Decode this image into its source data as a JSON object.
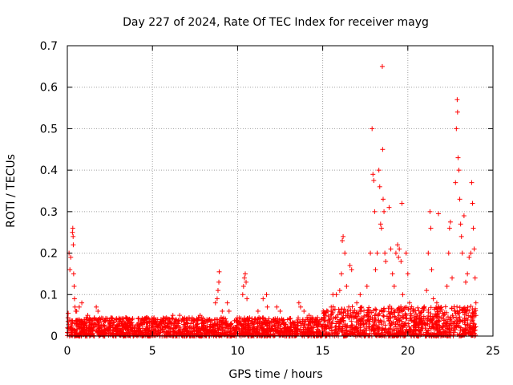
{
  "colors": {
    "series": "#ff0000",
    "grid": "#a0a0a0",
    "axis": "#000000"
  },
  "chart_data": {
    "type": "scatter",
    "title": "Day 227 of 2024, Rate Of TEC Index for receiver mayg",
    "xlabel": "GPS time / hours",
    "ylabel": "ROTI / TECUs",
    "xlim": [
      0,
      25
    ],
    "ylim": [
      0,
      0.7
    ],
    "x_ticks": [
      0,
      5,
      10,
      15,
      20,
      25
    ],
    "x_tick_labels": [
      "0",
      "5",
      "10",
      "15",
      "20",
      "25"
    ],
    "y_ticks": [
      0,
      0.1,
      0.2,
      0.3,
      0.4,
      0.5,
      0.6,
      0.7
    ],
    "y_tick_labels": [
      "0",
      "0.1",
      "0.2",
      "0.3",
      "0.4",
      "0.5",
      "0.6",
      "0.7"
    ],
    "grid": true,
    "marker": "+",
    "series": [
      {
        "name": "ROTI",
        "points": [
          [
            0.05,
            0.055
          ],
          [
            0.1,
            0.2
          ],
          [
            0.15,
            0.16
          ],
          [
            0.2,
            0.19
          ],
          [
            0.3,
            0.25
          ],
          [
            0.32,
            0.26
          ],
          [
            0.34,
            0.24
          ],
          [
            0.35,
            0.22
          ],
          [
            0.37,
            0.15
          ],
          [
            0.4,
            0.12
          ],
          [
            0.42,
            0.09
          ],
          [
            0.45,
            0.07
          ],
          [
            0.5,
            0.06
          ],
          [
            0.55,
            0.06
          ],
          [
            0.7,
            0.07
          ],
          [
            0.85,
            0.08
          ],
          [
            1.2,
            0.05
          ],
          [
            1.7,
            0.07
          ],
          [
            1.8,
            0.06
          ],
          [
            2.5,
            0.03
          ],
          [
            3.5,
            0.03
          ],
          [
            4.3,
            0.035
          ],
          [
            5.0,
            0.04
          ],
          [
            5.5,
            0.04
          ],
          [
            6.2,
            0.05
          ],
          [
            6.6,
            0.05
          ],
          [
            7.4,
            0.04
          ],
          [
            7.8,
            0.05
          ],
          [
            8.2,
            0.04
          ],
          [
            8.7,
            0.08
          ],
          [
            8.8,
            0.09
          ],
          [
            8.85,
            0.11
          ],
          [
            8.9,
            0.13
          ],
          [
            8.92,
            0.155
          ],
          [
            9.1,
            0.06
          ],
          [
            9.4,
            0.08
          ],
          [
            9.5,
            0.06
          ],
          [
            10.3,
            0.1
          ],
          [
            10.35,
            0.12
          ],
          [
            10.4,
            0.14
          ],
          [
            10.45,
            0.15
          ],
          [
            10.5,
            0.13
          ],
          [
            10.55,
            0.09
          ],
          [
            11.2,
            0.06
          ],
          [
            11.5,
            0.09
          ],
          [
            11.7,
            0.1
          ],
          [
            11.75,
            0.07
          ],
          [
            12.3,
            0.07
          ],
          [
            12.5,
            0.06
          ],
          [
            13.6,
            0.08
          ],
          [
            13.7,
            0.07
          ],
          [
            13.9,
            0.06
          ],
          [
            14.2,
            0.05
          ],
          [
            14.6,
            0.04
          ],
          [
            15.3,
            0.06
          ],
          [
            15.5,
            0.07
          ],
          [
            15.6,
            0.1
          ],
          [
            15.8,
            0.1
          ],
          [
            16.0,
            0.11
          ],
          [
            16.1,
            0.15
          ],
          [
            16.15,
            0.23
          ],
          [
            16.2,
            0.24
          ],
          [
            16.3,
            0.2
          ],
          [
            16.4,
            0.12
          ],
          [
            16.6,
            0.17
          ],
          [
            16.7,
            0.16
          ],
          [
            17.0,
            0.08
          ],
          [
            17.2,
            0.1
          ],
          [
            17.6,
            0.12
          ],
          [
            17.8,
            0.2
          ],
          [
            17.9,
            0.5
          ],
          [
            17.95,
            0.39
          ],
          [
            18.0,
            0.375
          ],
          [
            18.05,
            0.3
          ],
          [
            18.1,
            0.16
          ],
          [
            18.2,
            0.2
          ],
          [
            18.3,
            0.4
          ],
          [
            18.35,
            0.36
          ],
          [
            18.4,
            0.27
          ],
          [
            18.45,
            0.26
          ],
          [
            18.5,
            0.65
          ],
          [
            18.52,
            0.45
          ],
          [
            18.55,
            0.33
          ],
          [
            18.6,
            0.3
          ],
          [
            18.65,
            0.2
          ],
          [
            18.7,
            0.18
          ],
          [
            18.9,
            0.31
          ],
          [
            19.0,
            0.21
          ],
          [
            19.1,
            0.15
          ],
          [
            19.2,
            0.12
          ],
          [
            19.3,
            0.2
          ],
          [
            19.4,
            0.22
          ],
          [
            19.45,
            0.19
          ],
          [
            19.5,
            0.21
          ],
          [
            19.6,
            0.18
          ],
          [
            19.65,
            0.32
          ],
          [
            19.7,
            0.1
          ],
          [
            19.9,
            0.2
          ],
          [
            20.0,
            0.15
          ],
          [
            20.1,
            0.08
          ],
          [
            20.3,
            0.06
          ],
          [
            20.7,
            0.05
          ],
          [
            21.1,
            0.11
          ],
          [
            21.2,
            0.2
          ],
          [
            21.3,
            0.3
          ],
          [
            21.35,
            0.26
          ],
          [
            21.4,
            0.16
          ],
          [
            21.5,
            0.09
          ],
          [
            21.7,
            0.08
          ],
          [
            21.8,
            0.295
          ],
          [
            21.9,
            0.06
          ],
          [
            22.1,
            0.05
          ],
          [
            22.3,
            0.12
          ],
          [
            22.4,
            0.2
          ],
          [
            22.45,
            0.26
          ],
          [
            22.5,
            0.275
          ],
          [
            22.6,
            0.14
          ],
          [
            22.8,
            0.37
          ],
          [
            22.85,
            0.5
          ],
          [
            22.9,
            0.57
          ],
          [
            22.92,
            0.54
          ],
          [
            22.95,
            0.43
          ],
          [
            23.0,
            0.4
          ],
          [
            23.05,
            0.33
          ],
          [
            23.1,
            0.27
          ],
          [
            23.15,
            0.24
          ],
          [
            23.2,
            0.2
          ],
          [
            23.3,
            0.29
          ],
          [
            23.4,
            0.13
          ],
          [
            23.5,
            0.15
          ],
          [
            23.6,
            0.19
          ],
          [
            23.7,
            0.2
          ],
          [
            23.75,
            0.37
          ],
          [
            23.8,
            0.32
          ],
          [
            23.85,
            0.26
          ],
          [
            23.9,
            0.21
          ],
          [
            23.95,
            0.14
          ],
          [
            24.0,
            0.08
          ]
        ]
      }
    ],
    "noise_band": {
      "description": "dense background of points between 0 and about 0.05 across the full day",
      "x_range": [
        0,
        24
      ],
      "typical_y_max": 0.045
    }
  }
}
